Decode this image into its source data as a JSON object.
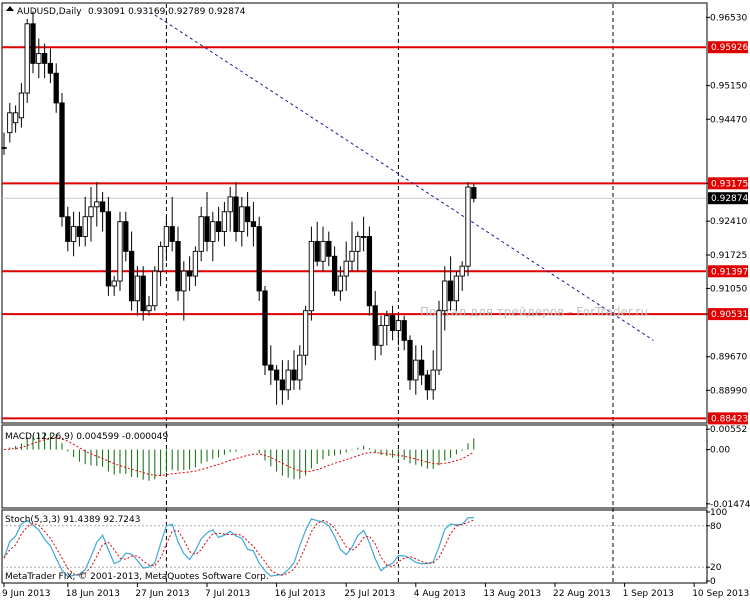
{
  "header": {
    "symbol": "AUDUSD,Daily",
    "ohlc": "0.93091 0.93169 0.92789 0.92874"
  },
  "watermark": "Портал для трейдеров - ForTrader.ru",
  "copyright": "MetaTrader FIX, © 2001-2013, MetaQuotes Software Corp.",
  "colors": {
    "level_line": "#e00000",
    "trend_line": "#1a1aa0",
    "macd_hist": "#0a6b0a",
    "macd_signal": "#e00000",
    "stoch_main": "#3fa9d8",
    "stoch_signal": "#e00000",
    "grid": "#000000"
  },
  "price_axis": {
    "ticks": [
      "0.96530",
      "0.95150",
      "0.94470",
      "0.93175",
      "0.92410",
      "0.91725",
      "0.91050",
      "0.90530",
      "0.89670",
      "0.88990"
    ],
    "ylim": [
      0.8835,
      0.968
    ]
  },
  "levels": [
    {
      "label": "0.95926",
      "value": 0.95926
    },
    {
      "label": "0.93175",
      "value": 0.93175
    },
    {
      "label": "0.91397",
      "value": 0.91397
    },
    {
      "label": "0.90531",
      "value": 0.90531
    },
    {
      "label": "0.88423",
      "value": 0.88423
    }
  ],
  "current_price": {
    "label": "0.92874",
    "value": 0.92874
  },
  "trend_line": {
    "from": [
      26,
      0.9658
    ],
    "to": [
      112,
      0.9
    ]
  },
  "macd": {
    "title": "MACD(12,26,9) 0.004599 -0.000049",
    "ticks": [
      "0.00552",
      "0.00",
      "-0.014742"
    ],
    "ylim": [
      -0.0156,
      0.0064
    ]
  },
  "stoch": {
    "title": "Stoch(5,3,3) 91.4389 92.7243",
    "ticks": [
      "100",
      "80",
      "20",
      "0"
    ],
    "ylim": [
      0,
      100
    ]
  },
  "time_axis": {
    "labels": [
      {
        "text": "9 Jun 2013",
        "index": 0
      },
      {
        "text": "18 Jun 2013",
        "index": 11
      },
      {
        "text": "27 Jun 2013",
        "index": 23
      },
      {
        "text": "7 Jul 2013",
        "index": 35
      },
      {
        "text": "16 Jul 2013",
        "index": 47
      },
      {
        "text": "25 Jul 2013",
        "index": 59
      },
      {
        "text": "4 Aug 2013",
        "index": 71
      },
      {
        "text": "13 Aug 2013",
        "index": 83
      },
      {
        "text": "22 Aug 2013",
        "index": 95
      },
      {
        "text": "1 Sep 2013",
        "index": 107
      },
      {
        "text": "10 Sep 2013",
        "index": 119
      }
    ],
    "separators": [
      28,
      68,
      105
    ]
  },
  "chart_data": {
    "type": "candlestick",
    "title": "AUDUSD,Daily",
    "xlabel": "",
    "ylabel": "",
    "ylim": [
      0.8835,
      0.968
    ],
    "series": [
      {
        "name": "AUDUSD",
        "ohlc": [
          [
            0.939,
            0.942,
            0.9375,
            0.939
          ],
          [
            0.942,
            0.948,
            0.94,
            0.946
          ],
          [
            0.944,
            0.9475,
            0.942,
            0.946
          ],
          [
            0.945,
            0.952,
            0.943,
            0.95
          ],
          [
            0.95,
            0.965,
            0.948,
            0.964
          ],
          [
            0.964,
            0.9665,
            0.954,
            0.956
          ],
          [
            0.956,
            0.961,
            0.953,
            0.958
          ],
          [
            0.958,
            0.96,
            0.953,
            0.956
          ],
          [
            0.956,
            0.959,
            0.952,
            0.954
          ],
          [
            0.954,
            0.956,
            0.946,
            0.948
          ],
          [
            0.948,
            0.95,
            0.923,
            0.925
          ],
          [
            0.925,
            0.927,
            0.918,
            0.92
          ],
          [
            0.92,
            0.926,
            0.917,
            0.923
          ],
          [
            0.923,
            0.926,
            0.919,
            0.921
          ],
          [
            0.921,
            0.929,
            0.919,
            0.925
          ],
          [
            0.925,
            0.931,
            0.92,
            0.927
          ],
          [
            0.927,
            0.932,
            0.923,
            0.928
          ],
          [
            0.928,
            0.93,
            0.922,
            0.926
          ],
          [
            0.926,
            0.929,
            0.909,
            0.911
          ],
          [
            0.911,
            0.913,
            0.909,
            0.912
          ],
          [
            0.912,
            0.926,
            0.91,
            0.924
          ],
          [
            0.924,
            0.926,
            0.916,
            0.918
          ],
          [
            0.918,
            0.922,
            0.906,
            0.908
          ],
          [
            0.908,
            0.915,
            0.905,
            0.913
          ],
          [
            0.913,
            0.915,
            0.904,
            0.906
          ],
          [
            0.906,
            0.909,
            0.905,
            0.907
          ],
          [
            0.907,
            0.915,
            0.906,
            0.914
          ],
          [
            0.914,
            0.92,
            0.911,
            0.919
          ],
          [
            0.919,
            0.925,
            0.916,
            0.923
          ],
          [
            0.923,
            0.929,
            0.918,
            0.92
          ],
          [
            0.92,
            0.923,
            0.908,
            0.91
          ],
          [
            0.91,
            0.916,
            0.904,
            0.914
          ],
          [
            0.914,
            0.917,
            0.91,
            0.913
          ],
          [
            0.913,
            0.919,
            0.911,
            0.918
          ],
          [
            0.918,
            0.927,
            0.916,
            0.925
          ],
          [
            0.925,
            0.93,
            0.918,
            0.92
          ],
          [
            0.92,
            0.926,
            0.916,
            0.924
          ],
          [
            0.924,
            0.927,
            0.92,
            0.922
          ],
          [
            0.922,
            0.928,
            0.919,
            0.926
          ],
          [
            0.926,
            0.931,
            0.922,
            0.929
          ],
          [
            0.929,
            0.932,
            0.92,
            0.922
          ],
          [
            0.922,
            0.929,
            0.919,
            0.927
          ],
          [
            0.927,
            0.93,
            0.921,
            0.924
          ],
          [
            0.924,
            0.928,
            0.919,
            0.923
          ],
          [
            0.923,
            0.925,
            0.908,
            0.91
          ],
          [
            0.91,
            0.911,
            0.893,
            0.895
          ],
          [
            0.895,
            0.899,
            0.891,
            0.894
          ],
          [
            0.894,
            0.895,
            0.887,
            0.892
          ],
          [
            0.892,
            0.896,
            0.887,
            0.89
          ],
          [
            0.89,
            0.896,
            0.888,
            0.894
          ],
          [
            0.894,
            0.898,
            0.89,
            0.892
          ],
          [
            0.892,
            0.899,
            0.89,
            0.897
          ],
          [
            0.897,
            0.907,
            0.895,
            0.906
          ],
          [
            0.906,
            0.923,
            0.904,
            0.92
          ],
          [
            0.92,
            0.924,
            0.915,
            0.916
          ],
          [
            0.916,
            0.923,
            0.914,
            0.92
          ],
          [
            0.92,
            0.922,
            0.915,
            0.917
          ],
          [
            0.917,
            0.919,
            0.909,
            0.91
          ],
          [
            0.91,
            0.915,
            0.908,
            0.913
          ],
          [
            0.913,
            0.92,
            0.91,
            0.916
          ],
          [
            0.916,
            0.924,
            0.914,
            0.918
          ],
          [
            0.918,
            0.922,
            0.914,
            0.921
          ],
          [
            0.921,
            0.925,
            0.918,
            0.921
          ],
          [
            0.921,
            0.923,
            0.905,
            0.907
          ],
          [
            0.907,
            0.91,
            0.896,
            0.899
          ],
          [
            0.899,
            0.905,
            0.897,
            0.903
          ],
          [
            0.903,
            0.906,
            0.899,
            0.905
          ],
          [
            0.905,
            0.907,
            0.9,
            0.902
          ],
          [
            0.902,
            0.905,
            0.899,
            0.904
          ],
          [
            0.904,
            0.905,
            0.898,
            0.9
          ],
          [
            0.9,
            0.901,
            0.89,
            0.892
          ],
          [
            0.892,
            0.899,
            0.889,
            0.896
          ],
          [
            0.896,
            0.899,
            0.891,
            0.893
          ],
          [
            0.893,
            0.894,
            0.888,
            0.89
          ],
          [
            0.89,
            0.898,
            0.888,
            0.894
          ],
          [
            0.894,
            0.908,
            0.893,
            0.906
          ],
          [
            0.906,
            0.915,
            0.902,
            0.912
          ],
          [
            0.912,
            0.917,
            0.906,
            0.908
          ],
          [
            0.908,
            0.914,
            0.906,
            0.913
          ],
          [
            0.913,
            0.916,
            0.91,
            0.915
          ],
          [
            0.915,
            0.932,
            0.913,
            0.931
          ],
          [
            0.9309,
            0.9317,
            0.9279,
            0.9287
          ]
        ]
      },
      {
        "name": "MACD(12,26,9)",
        "last": 0.004599
      },
      {
        "name": "Stoch(5,3,3)",
        "last_main": 91.4389,
        "last_signal": 92.7243
      }
    ]
  }
}
